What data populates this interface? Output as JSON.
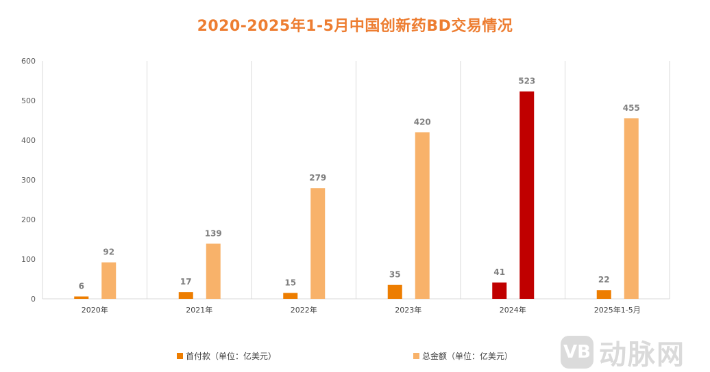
{
  "chart_data": {
    "type": "bar",
    "title": "2020-2025年1-5月中国创新药BD交易情况",
    "categories": [
      "2020年",
      "2021年",
      "2022年",
      "2023年",
      "2024年",
      "2025年1-5月"
    ],
    "series": [
      {
        "name": "首付款（单位：亿美元）",
        "values": [
          6,
          17,
          15,
          35,
          41,
          22
        ],
        "color": "#ED7D00"
      },
      {
        "name": "总金额（单位：亿美元）",
        "values": [
          92,
          139,
          279,
          420,
          523,
          455
        ],
        "color": "#F8B26A"
      }
    ],
    "highlight": {
      "category_index": 4,
      "color": "#C00000"
    },
    "ylim": [
      0,
      600
    ],
    "yticks": [
      0,
      100,
      200,
      300,
      400,
      500,
      600
    ],
    "grid": "vertical separators",
    "legend_position": "bottom"
  },
  "watermark": {
    "logo": "VB",
    "text": "动脉网"
  }
}
